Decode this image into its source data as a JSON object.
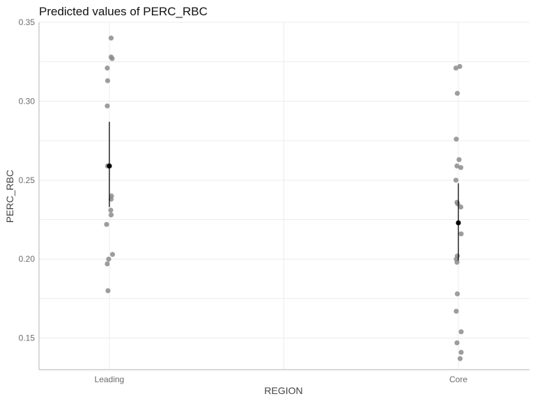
{
  "chart_data": {
    "type": "scatter",
    "title": "Predicted values of PERC_RBC",
    "xlabel": "REGION",
    "ylabel": "PERC_RBC",
    "categories": [
      "Leading",
      "Core"
    ],
    "ylim": [
      0.13,
      0.35
    ],
    "yticks": [
      0.15,
      0.2,
      0.25,
      0.3,
      0.35
    ],
    "yticks_labels": [
      "0.15",
      "0.20",
      "0.25",
      "0.30",
      "0.35"
    ],
    "grid": true,
    "colors": {
      "raw_points": "#8c8c8c",
      "prediction": "#000000",
      "grid": "#ebebeb",
      "axis": "#b3b3b3"
    },
    "raw_points": [
      {
        "category": "Leading",
        "jitter": 0.05,
        "y": 0.34
      },
      {
        "category": "Leading",
        "jitter": 0.05,
        "y": 0.328
      },
      {
        "category": "Leading",
        "jitter": 0.08,
        "y": 0.327
      },
      {
        "category": "Leading",
        "jitter": -0.06,
        "y": 0.321
      },
      {
        "category": "Leading",
        "jitter": -0.05,
        "y": 0.313
      },
      {
        "category": "Leading",
        "jitter": -0.06,
        "y": 0.297
      },
      {
        "category": "Leading",
        "jitter": -0.05,
        "y": 0.259
      },
      {
        "category": "Leading",
        "jitter": 0.06,
        "y": 0.24
      },
      {
        "category": "Leading",
        "jitter": 0.05,
        "y": 0.238
      },
      {
        "category": "Leading",
        "jitter": 0.04,
        "y": 0.231
      },
      {
        "category": "Leading",
        "jitter": 0.05,
        "y": 0.228
      },
      {
        "category": "Leading",
        "jitter": -0.08,
        "y": 0.222
      },
      {
        "category": "Leading",
        "jitter": 0.09,
        "y": 0.203
      },
      {
        "category": "Leading",
        "jitter": -0.02,
        "y": 0.2
      },
      {
        "category": "Leading",
        "jitter": -0.06,
        "y": 0.197
      },
      {
        "category": "Leading",
        "jitter": -0.04,
        "y": 0.18
      },
      {
        "category": "Core",
        "jitter": 0.04,
        "y": 0.322
      },
      {
        "category": "Core",
        "jitter": -0.07,
        "y": 0.321
      },
      {
        "category": "Core",
        "jitter": -0.03,
        "y": 0.305
      },
      {
        "category": "Core",
        "jitter": -0.06,
        "y": 0.276
      },
      {
        "category": "Core",
        "jitter": 0.02,
        "y": 0.263
      },
      {
        "category": "Core",
        "jitter": -0.04,
        "y": 0.259
      },
      {
        "category": "Core",
        "jitter": 0.07,
        "y": 0.258
      },
      {
        "category": "Core",
        "jitter": -0.07,
        "y": 0.25
      },
      {
        "category": "Core",
        "jitter": -0.04,
        "y": 0.236
      },
      {
        "category": "Core",
        "jitter": -0.02,
        "y": 0.235
      },
      {
        "category": "Core",
        "jitter": 0.07,
        "y": 0.233
      },
      {
        "category": "Core",
        "jitter": 0.08,
        "y": 0.216
      },
      {
        "category": "Core",
        "jitter": -0.03,
        "y": 0.202
      },
      {
        "category": "Core",
        "jitter": -0.06,
        "y": 0.2
      },
      {
        "category": "Core",
        "jitter": -0.04,
        "y": 0.198
      },
      {
        "category": "Core",
        "jitter": -0.03,
        "y": 0.178
      },
      {
        "category": "Core",
        "jitter": -0.06,
        "y": 0.167
      },
      {
        "category": "Core",
        "jitter": 0.08,
        "y": 0.154
      },
      {
        "category": "Core",
        "jitter": -0.04,
        "y": 0.147
      },
      {
        "category": "Core",
        "jitter": 0.08,
        "y": 0.141
      },
      {
        "category": "Core",
        "jitter": 0.05,
        "y": 0.137
      }
    ],
    "predictions": [
      {
        "category": "Leading",
        "y": 0.259,
        "ci": [
          0.233,
          0.287
        ]
      },
      {
        "category": "Core",
        "y": 0.223,
        "ci": [
          0.199,
          0.248
        ]
      }
    ]
  }
}
